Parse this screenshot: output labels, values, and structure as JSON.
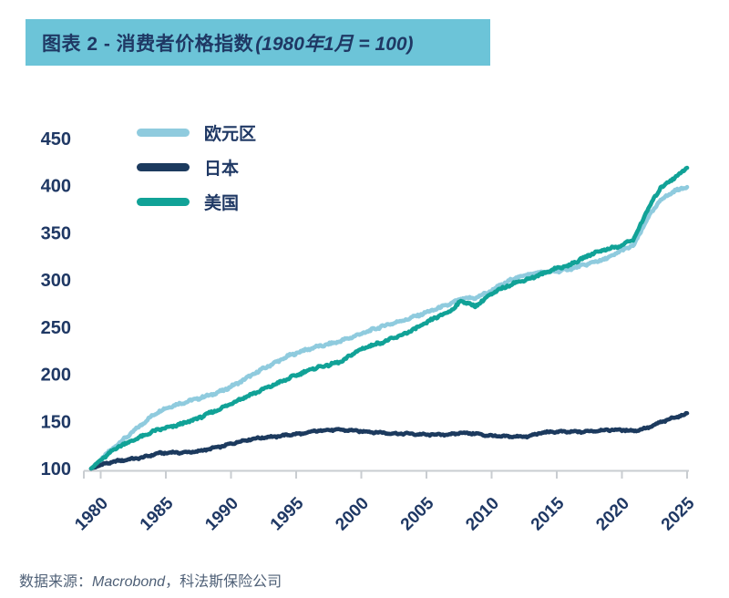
{
  "title_bar": {
    "text_main": "图表 2 - 消费者价格指数",
    "text_paren": "(1980年1月 = 100)",
    "bg_color": "#6CC4D8",
    "fg_color": "#1F3864"
  },
  "legend": {
    "items": [
      {
        "label": "欧元区",
        "color": "#8FCBDE"
      },
      {
        "label": "日本",
        "color": "#1C3A5E"
      },
      {
        "label": "美国",
        "color": "#11A297"
      }
    ]
  },
  "source_line": {
    "prefix": "数据来源：",
    "source_italic": "Macrobond",
    "suffix": "，科法斯保险公司"
  },
  "chart_data": {
    "type": "line",
    "title": "图表 2 - 消费者价格指数(1980年1月 = 100)",
    "xlabel": "",
    "ylabel": "",
    "ylim": [
      100,
      450
    ],
    "yticks": [
      100,
      150,
      200,
      250,
      300,
      350,
      400,
      450
    ],
    "xticks": [
      1980,
      1985,
      1990,
      1995,
      2000,
      2005,
      2010,
      2015,
      2020,
      2025
    ],
    "grid": false,
    "legend_position": "top-left",
    "axis_color": "#C9CDD1",
    "tick_label_color": "#1F3864",
    "x": [
      1980,
      1981,
      1982,
      1983,
      1984,
      1985,
      1986,
      1987,
      1988,
      1989,
      1990,
      1991,
      1992,
      1993,
      1994,
      1995,
      1996,
      1997,
      1998,
      1999,
      2000,
      2001,
      2002,
      2003,
      2004,
      2005,
      2006,
      2007,
      2008,
      2009,
      2010,
      2011,
      2012,
      2013,
      2014,
      2015,
      2016,
      2017,
      2018,
      2019,
      2020,
      2021,
      2022,
      2023,
      2024,
      2025
    ],
    "series": [
      {
        "name": "欧元区",
        "color": "#8FCBDE",
        "values": [
          100,
          113,
          126,
          137,
          149,
          160,
          166,
          170,
          174,
          178,
          183,
          190,
          198,
          206,
          213,
          220,
          225,
          229,
          232,
          236,
          241,
          246,
          251,
          255,
          259,
          264,
          269,
          274,
          280,
          281,
          287,
          295,
          302,
          306,
          308,
          309,
          311,
          315,
          319,
          323,
          331,
          337,
          365,
          385,
          394,
          399
        ]
      },
      {
        "name": "日本",
        "color": "#1C3A5E",
        "values": [
          100,
          105,
          108,
          110,
          112,
          116,
          117,
          117,
          118,
          121,
          124,
          128,
          131,
          133,
          134,
          136,
          137,
          140,
          141,
          141,
          140,
          139,
          138,
          137,
          137,
          136,
          136,
          136,
          138,
          137,
          135,
          134,
          134,
          134,
          138,
          139,
          139,
          139,
          140,
          141,
          141,
          140,
          143,
          149,
          154,
          158
        ]
      },
      {
        "name": "美国",
        "color": "#11A297",
        "values": [
          100,
          112,
          123,
          129,
          135,
          141,
          144,
          148,
          153,
          159,
          165,
          172,
          178,
          184,
          190,
          196,
          202,
          207,
          210,
          214,
          224,
          230,
          234,
          239,
          245,
          252,
          260,
          266,
          278,
          272,
          283,
          291,
          297,
          301,
          306,
          312,
          315,
          322,
          329,
          333,
          336,
          344,
          374,
          398,
          408,
          419
        ]
      }
    ]
  }
}
